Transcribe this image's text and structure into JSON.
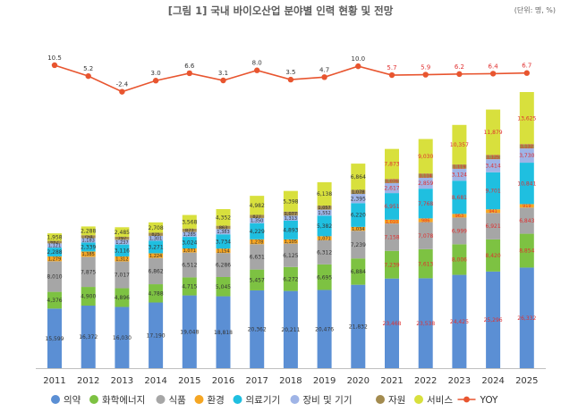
{
  "chart_data": {
    "type": "bar",
    "title": "[그림 1] 국내 바이오산업 분야별 인력 현황 및 전망",
    "unit_note": "(단위: 명, %)",
    "categories": [
      "2011",
      "2012",
      "2013",
      "2014",
      "2015",
      "2016",
      "2017",
      "2018",
      "2019",
      "2020",
      "2021",
      "2022",
      "2023",
      "2024",
      "2025"
    ],
    "series": [
      {
        "name": "의약",
        "color": "#5b8fd4",
        "values": [
          15599,
          16372,
          16030,
          17190,
          19048,
          18818,
          20362,
          20211,
          20476,
          21832,
          23468,
          23538,
          24425,
          25296,
          26332
        ]
      },
      {
        "name": "화학에너지",
        "color": "#7dc242",
        "values": [
          4376,
          4900,
          4896,
          4788,
          4715,
          5045,
          5457,
          6272,
          6695,
          6884,
          7239,
          7613,
          8006,
          8420,
          8854
        ]
      },
      {
        "name": "식품",
        "color": "#a6a6a6",
        "values": [
          8010,
          7875,
          7017,
          6862,
          6512,
          6286,
          6631,
          6125,
          6312,
          7239,
          7158,
          7078,
          6999,
          6921,
          6843
        ]
      },
      {
        "name": "환경",
        "color": "#f5a623",
        "values": [
          1279,
          1385,
          1312,
          1224,
          1071,
          1154,
          1278,
          1105,
          1071,
          1034,
          1010,
          986,
          963,
          941,
          919
        ]
      },
      {
        "name": "의료기기",
        "color": "#1fbfe0",
        "values": [
          2288,
          2339,
          3116,
          3271,
          3024,
          3734,
          4229,
          4893,
          5382,
          6220,
          6951,
          7768,
          8681,
          9701,
          10841
        ]
      },
      {
        "name": "장비 및 기기",
        "color": "#9fb4e6",
        "values": [
          1121,
          1183,
          1237,
          1301,
          1285,
          1383,
          1350,
          1313,
          1552,
          2395,
          2617,
          2859,
          3124,
          3414,
          3730
        ]
      },
      {
        "name": "자원",
        "color": "#a38b4f",
        "values": [
          662,
          754,
          797,
          825,
          873,
          863,
          827,
          1077,
          1057,
          1078,
          1076,
          1114,
          1119,
          1125,
          1132
        ]
      },
      {
        "name": "서비스",
        "color": "#d8e03d",
        "values": [
          1958,
          2288,
          2485,
          2708,
          3568,
          4352,
          4982,
          5398,
          6138,
          6864,
          7873,
          9030,
          10357,
          11879,
          13625
        ]
      }
    ],
    "yoy": {
      "name": "YOY",
      "color": "#e8552f",
      "values": [
        10.5,
        5.2,
        -2.4,
        3.0,
        6.6,
        3.1,
        8.0,
        3.5,
        4.7,
        10.0,
        5.7,
        5.9,
        6.2,
        6.4,
        6.7
      ]
    },
    "forecast_label_color": "#e03030",
    "forecast_from_index": 10,
    "ylim": [
      0,
      80000
    ],
    "legend_position": "bottom"
  }
}
